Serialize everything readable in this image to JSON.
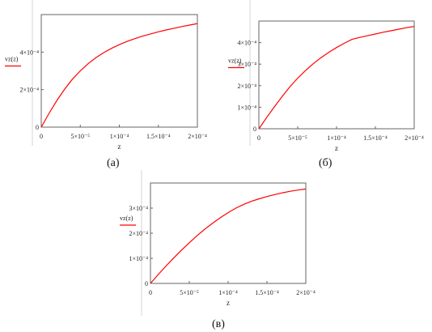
{
  "chart_data": [
    {
      "type": "line",
      "panel_label": "(а)",
      "legend_label": "vz(z)",
      "xlabel": "z",
      "x_ticks": [
        "0",
        "5×10⁻⁵",
        "1×10⁻⁴",
        "1.5×10⁻⁴",
        "2×10⁻⁴"
      ],
      "y_ticks": [
        "0",
        "2×10⁻⁴",
        "4×10⁻⁴"
      ],
      "xlim": [
        0,
        0.0002
      ],
      "ylim": [
        0,
        0.0006
      ],
      "grid": false,
      "series": [
        {
          "color": "#ff0000",
          "x": [
            0,
            1e-05,
            2e-05,
            3e-05,
            4e-05,
            5e-05,
            6e-05,
            7e-05,
            8e-05,
            9e-05,
            0.0001,
            0.00011,
            0.00012,
            0.00013,
            0.00014,
            0.00015,
            0.00016,
            0.00017,
            0.00018,
            0.00019,
            0.0002
          ],
          "y": [
            0,
            7.35e-05,
            0.000142,
            0.000203,
            0.000256,
            0.0003,
            0.000338,
            0.00037,
            0.000397,
            0.00042,
            0.00044,
            0.000457,
            0.000472,
            0.000485,
            0.000497,
            0.000508,
            0.000518,
            0.000527,
            0.000536,
            0.000544,
            0.000552
          ]
        }
      ]
    },
    {
      "type": "line",
      "panel_label": "(б)",
      "legend_label": "vz(z)",
      "xlabel": "z",
      "x_ticks": [
        "0",
        "5×10⁻⁵",
        "1×10⁻⁴",
        "1.5×10⁻⁴",
        "2×10⁻⁴"
      ],
      "y_ticks": [
        "0",
        "1×10⁻⁴",
        "2×10⁻⁴",
        "3×10⁻⁴",
        "4×10⁻⁴"
      ],
      "xlim": [
        0,
        0.0002
      ],
      "ylim": [
        0,
        0.0005
      ],
      "grid": false,
      "series": [
        {
          "color": "#ff0000",
          "x": [
            0,
            1e-05,
            2e-05,
            3e-05,
            4e-05,
            5e-05,
            6e-05,
            7e-05,
            8e-05,
            9e-05,
            0.0001,
            0.00011,
            0.00012,
            0.00013,
            0.00014,
            0.00015,
            0.00016,
            0.00017,
            0.00018,
            0.00019,
            0.0002
          ],
          "y": [
            0,
            5.2e-05,
            0.000102,
            0.00015,
            0.000195,
            0.000235,
            0.00027,
            0.000302,
            0.00033,
            0.000355,
            0.000377,
            0.000397,
            0.000415,
            0.000424,
            0.000432,
            0.00044,
            0.000448,
            0.000455,
            0.000462,
            0.000469,
            0.000475
          ]
        }
      ]
    },
    {
      "type": "line",
      "panel_label": "(в)",
      "legend_label": "vz(z)",
      "xlabel": "z",
      "x_ticks": [
        "0",
        "5×10⁻⁵",
        "1×10⁻⁴",
        "1.5×10⁻⁴",
        "2×10⁻⁴"
      ],
      "y_ticks": [
        "0",
        "1×10⁻⁴",
        "2×10⁻⁴",
        "3×10⁻⁴"
      ],
      "xlim": [
        0,
        0.0002
      ],
      "ylim": [
        0,
        0.0004
      ],
      "grid": false,
      "series": [
        {
          "color": "#ff0000",
          "x": [
            0,
            1e-05,
            2e-05,
            3e-05,
            4e-05,
            5e-05,
            6e-05,
            7e-05,
            8e-05,
            9e-05,
            0.0001,
            0.00011,
            0.00012,
            0.00013,
            0.00014,
            0.00015,
            0.00016,
            0.00017,
            0.00018,
            0.00019,
            0.0002
          ],
          "y": [
            0,
            3.55e-05,
            6.95e-05,
            0.000102,
            0.000133,
            0.000162,
            0.00019,
            0.000216,
            0.00024,
            0.000262,
            0.000282,
            0.0003,
            0.000315,
            0.000327,
            0.000337,
            0.000346,
            0.000354,
            0.000361,
            0.000367,
            0.000372,
            0.000376
          ]
        }
      ]
    }
  ]
}
